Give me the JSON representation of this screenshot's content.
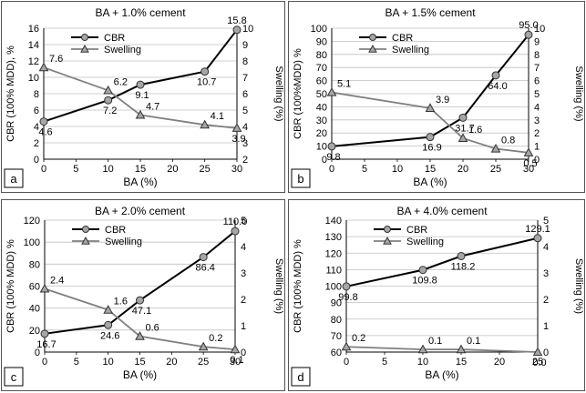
{
  "chart_data": [
    {
      "panel_label": "a",
      "type": "line",
      "title": "BA + 1.0% cement",
      "xlabel": "BA (%)",
      "ylabel": "CBR (100% MDD), %",
      "y2label": "Swelling (%)",
      "xlim": [
        0,
        30
      ],
      "xticks": [
        0,
        5,
        10,
        15,
        20,
        25,
        30
      ],
      "ylim": [
        0,
        16
      ],
      "yticks": [
        0,
        2,
        4,
        6,
        8,
        10,
        12,
        14,
        16
      ],
      "y2lim": [
        2,
        10
      ],
      "y2ticks": [
        2,
        3,
        4,
        5,
        6,
        7,
        8,
        9,
        10
      ],
      "legend": "top-left",
      "series": [
        {
          "name": "CBR",
          "axis": "left",
          "marker": "circle",
          "x": [
            0,
            10,
            15,
            25,
            30
          ],
          "y": [
            4.6,
            7.2,
            9.1,
            10.7,
            15.8
          ],
          "labels": [
            "4.6",
            "7.2",
            "9.1",
            "10.7",
            "15.8"
          ]
        },
        {
          "name": "Swelling",
          "axis": "right",
          "marker": "triangle",
          "x": [
            0,
            10,
            15,
            25,
            30
          ],
          "y": [
            7.6,
            6.2,
            4.7,
            4.1,
            3.9
          ],
          "labels": [
            "7.6",
            "6.2",
            "4.7",
            "4.1",
            "3.9"
          ]
        }
      ]
    },
    {
      "panel_label": "b",
      "type": "line",
      "title": "BA + 1.5% cement",
      "xlabel": "BA (%)",
      "ylabel": "CBR (100%MDD) %",
      "y2label": "Swelling (%)",
      "xlim": [
        0,
        30
      ],
      "xticks": [
        0,
        5,
        10,
        15,
        20,
        25,
        30
      ],
      "ylim": [
        0,
        100
      ],
      "yticks": [
        0,
        10,
        20,
        30,
        40,
        50,
        60,
        70,
        80,
        90,
        100
      ],
      "y2lim": [
        0,
        10
      ],
      "y2ticks": [
        0,
        1,
        2,
        3,
        4,
        5,
        6,
        7,
        8,
        9,
        10
      ],
      "legend": "top-left",
      "series": [
        {
          "name": "CBR",
          "axis": "left",
          "marker": "circle",
          "x": [
            0,
            15,
            20,
            25,
            30
          ],
          "y": [
            9.8,
            16.9,
            31.7,
            64.0,
            95.0
          ],
          "labels": [
            "9.8",
            "16.9",
            "31.7",
            "64.0",
            "95.0"
          ]
        },
        {
          "name": "Swelling",
          "axis": "right",
          "marker": "triangle",
          "x": [
            0,
            15,
            20,
            25,
            30
          ],
          "y": [
            5.1,
            3.9,
            1.6,
            0.8,
            0.5
          ],
          "labels": [
            "5.1",
            "3.9",
            "1.6",
            "0.8",
            "0.5"
          ]
        }
      ]
    },
    {
      "panel_label": "c",
      "type": "line",
      "title": "BA + 2.0% cement",
      "xlabel": "BA (%)",
      "ylabel": "CBR (100% MDD) %",
      "y2label": "Swelling (%)",
      "xlim": [
        0,
        30
      ],
      "xticks": [
        0,
        5,
        10,
        15,
        20,
        25,
        30
      ],
      "ylim": [
        0,
        120
      ],
      "yticks": [
        0,
        20,
        40,
        60,
        80,
        100,
        120
      ],
      "y2lim": [
        0,
        5
      ],
      "y2ticks": [
        0,
        1,
        2,
        3,
        4,
        5
      ],
      "legend": "top-left",
      "series": [
        {
          "name": "CBR",
          "axis": "left",
          "marker": "circle",
          "x": [
            0,
            10,
            15,
            25,
            30
          ],
          "y": [
            16.7,
            24.6,
            47.1,
            86.4,
            110.0
          ],
          "labels": [
            "16.7",
            "24.6",
            "47.1",
            "86.4",
            "110.0"
          ]
        },
        {
          "name": "Swelling",
          "axis": "right",
          "marker": "triangle",
          "x": [
            0,
            10,
            15,
            25,
            30
          ],
          "y": [
            2.4,
            1.6,
            0.6,
            0.2,
            0.1
          ],
          "labels": [
            "2.4",
            "1.6",
            "0.6",
            "0.2",
            "0.1"
          ]
        }
      ]
    },
    {
      "panel_label": "d",
      "type": "line",
      "title": "BA + 4.0% cement",
      "xlabel": "BA (%)",
      "ylabel": "CBR (100% MDD) %",
      "y2label": "Swelling (%)",
      "xlim": [
        0,
        25
      ],
      "xticks": [
        0,
        5,
        10,
        15,
        20,
        25
      ],
      "ylim": [
        60,
        140
      ],
      "yticks": [
        60,
        70,
        80,
        90,
        100,
        110,
        120,
        130,
        140
      ],
      "y2lim": [
        0,
        5
      ],
      "y2ticks": [
        0,
        1,
        2,
        3,
        4,
        5
      ],
      "legend": "top-left",
      "series": [
        {
          "name": "CBR",
          "axis": "left",
          "marker": "circle",
          "x": [
            0,
            10,
            15,
            25
          ],
          "y": [
            99.8,
            109.8,
            118.2,
            129.1
          ],
          "labels": [
            "99.8",
            "109.8",
            "118.2",
            "129.1"
          ]
        },
        {
          "name": "Swelling",
          "axis": "right",
          "marker": "triangle",
          "x": [
            0,
            10,
            15,
            25
          ],
          "y": [
            0.2,
            0.1,
            0.1,
            0.0
          ],
          "labels": [
            "0.2",
            "0.1",
            "0.1",
            "0.0"
          ]
        }
      ]
    }
  ],
  "colors": {
    "cbr_line": "#000000",
    "swelling_line": "#808080",
    "marker_fill": "#a6a6a6",
    "grid": "#bfbfbf",
    "panel_border": "#555555"
  }
}
